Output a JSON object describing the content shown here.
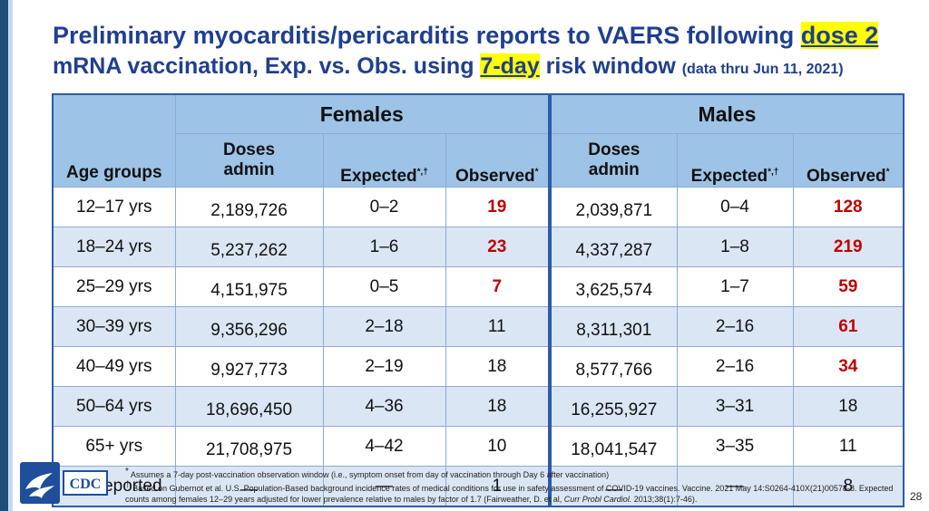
{
  "title": {
    "line1_prefix": "Preliminary myocarditis/pericarditis reports to VAERS following ",
    "line1_highlight": "dose 2",
    "line2_prefix": "mRNA vaccination, Exp. vs. Obs. using ",
    "line2_highlight": "7-day",
    "line2_suffix": " risk window ",
    "line2_small": "(data thru Jun 11, 2021)"
  },
  "table": {
    "group_females": "Females",
    "group_males": "Males",
    "col_age": "Age groups",
    "col_doses_1": "Doses",
    "col_doses_2": "admin",
    "col_expected": "Expected",
    "col_expected_sup": "*,†",
    "col_observed": "Observed",
    "col_observed_sup": "*",
    "rows": [
      {
        "age": "12–17 yrs",
        "f_doses": "2,189,726",
        "f_exp": "0–2",
        "f_obs": "19",
        "m_doses": "2,039,871",
        "m_exp": "0–4",
        "m_obs": "128"
      },
      {
        "age": "18–24 yrs",
        "f_doses": "5,237,262",
        "f_exp": "1–6",
        "f_obs": "23",
        "m_doses": "4,337,287",
        "m_exp": "1–8",
        "m_obs": "219"
      },
      {
        "age": "25–29 yrs",
        "f_doses": "4,151,975",
        "f_exp": "0–5",
        "f_obs": "7",
        "m_doses": "3,625,574",
        "m_exp": "1–7",
        "m_obs": "59"
      },
      {
        "age": "30–39 yrs",
        "f_doses": "9,356,296",
        "f_exp": "2–18",
        "f_obs": "11",
        "m_doses": "8,311,301",
        "m_exp": "2–16",
        "m_obs": "61"
      },
      {
        "age": "40–49 yrs",
        "f_doses": "9,927,773",
        "f_exp": "2–19",
        "f_obs": "18",
        "m_doses": "8,577,766",
        "m_exp": "2–16",
        "m_obs": "34"
      },
      {
        "age": "50–64 yrs",
        "f_doses": "18,696,450",
        "f_exp": "4–36",
        "f_obs": "18",
        "m_doses": "16,255,927",
        "m_exp": "3–31",
        "m_obs": "18"
      },
      {
        "age": "65+ yrs",
        "f_doses": "21,708,975",
        "f_exp": "4–42",
        "f_obs": "10",
        "m_doses": "18,041,547",
        "m_exp": "3–35",
        "m_obs": "11"
      },
      {
        "age": "Not reported",
        "f_doses": "—",
        "f_exp": "—",
        "f_obs": "1",
        "m_doses": "—",
        "m_exp": "—",
        "m_obs": "8"
      }
    ]
  },
  "footnotes": {
    "note1_mark": "*",
    "note1": "Assumes a 7-day post-vaccination observation window (i.e., symptom onset from day of vaccination through Day 6 after vaccination)",
    "note2_mark": "†",
    "note2_a": "Based on Gubernot et al. U.S. Population-Based background incidence rates of medical conditions for use in safety assessment of COVID-19 vaccines. Vaccine. 2021 May 14:S0264-410X(21)00578-8. Expected counts among females 12–29 years adjusted for lower prevalence relative to males by factor of 1.7 (Fairweather, D. et al, ",
    "note2_italic": "Curr Probl Cardiol.",
    "note2_b": " 2013;38(1):7-46)."
  },
  "logo": {
    "text": "CDC",
    "icon": "hhs-eagle-icon"
  },
  "page_number": "28",
  "colors": {
    "title": "#1f3f8f",
    "header_bg": "#9dc3e6",
    "alt_row": "#dae6f3",
    "highlight": "#ffff00",
    "red": "#c00000"
  }
}
